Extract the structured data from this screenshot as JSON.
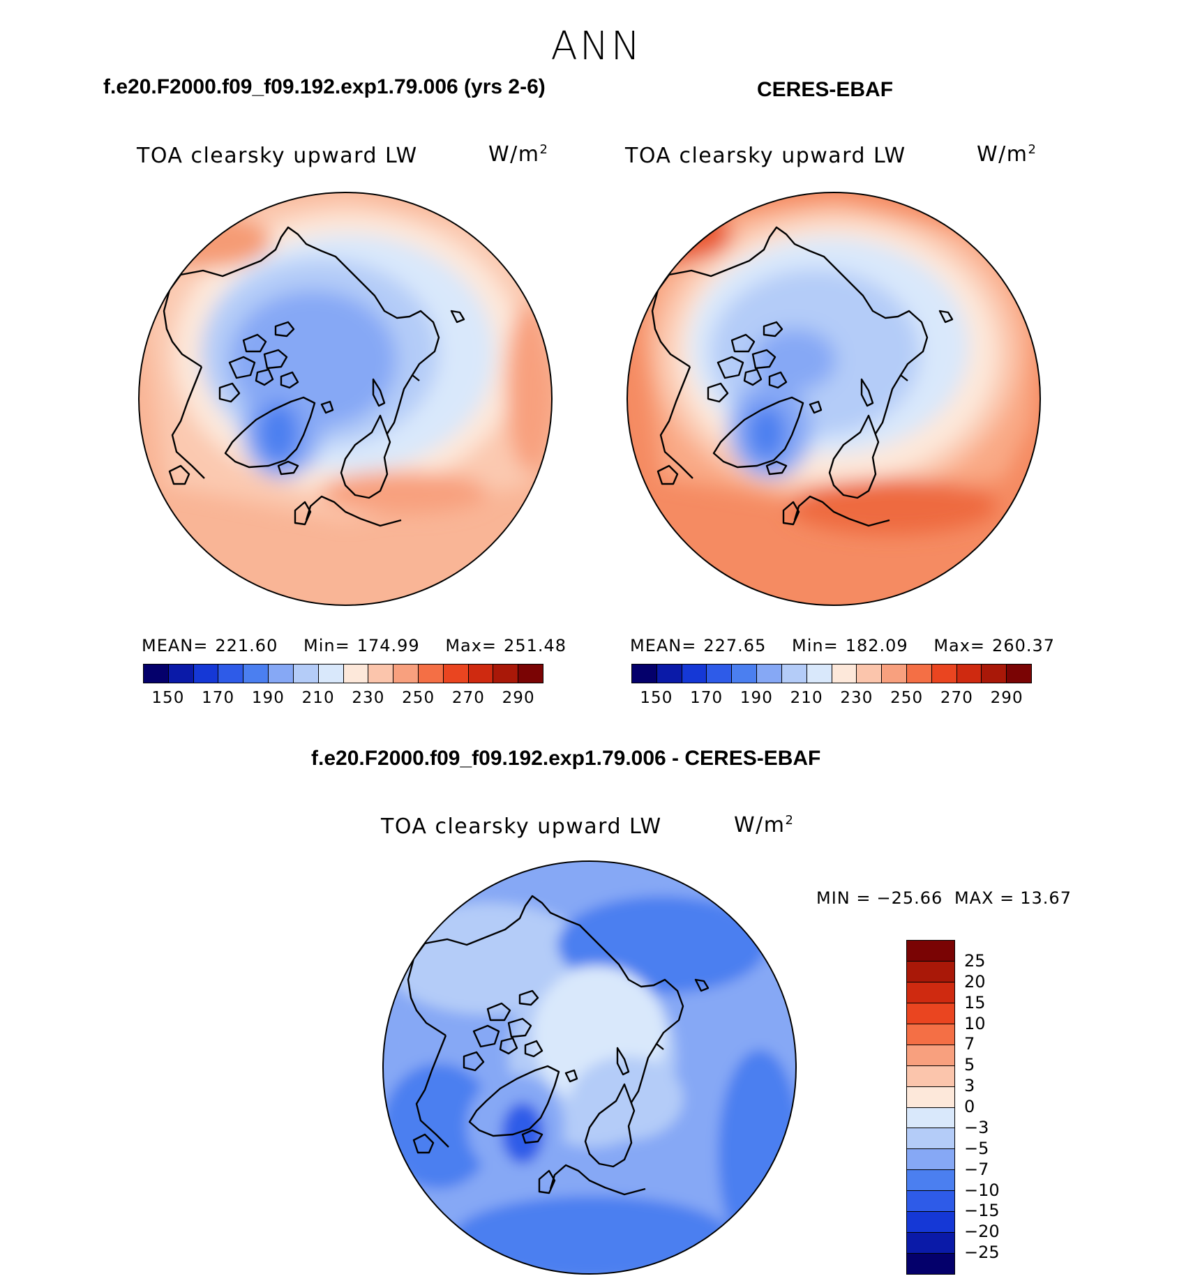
{
  "figure": {
    "season": "ANN",
    "variable": "TOA clearsky upward LW",
    "units_base": "W/m",
    "units_exp": "2"
  },
  "panels": {
    "model": {
      "title": "f.e20.F2000.f09_f09.192.exp1.79.006 (yrs 2-6)",
      "mean_label": "MEAN=",
      "mean": "221.60",
      "min_label": "Min=",
      "min": "174.99",
      "max_label": "Max=",
      "max": "251.48"
    },
    "obs": {
      "title": "CERES-EBAF",
      "mean_label": "MEAN=",
      "mean": "227.65",
      "min_label": "Min=",
      "min": "182.09",
      "max_label": "Max=",
      "max": "260.37"
    },
    "diff": {
      "title": "f.e20.F2000.f09_f09.192.exp1.79.006 - CERES-EBAF",
      "min_label": "MIN =",
      "min": "−25.66",
      "max_label": "MAX =",
      "max": "13.67"
    }
  },
  "chart_data": [
    {
      "type": "heatmap",
      "projection": "north polar stereographic",
      "title": "f.e20.F2000.f09_f09.192.exp1.79.006 (yrs 2-6)",
      "variable": "TOA clearsky upward LW",
      "units": "W/m2",
      "mean": 221.6,
      "min": 174.99,
      "max": 251.48,
      "colorbar_ticks": [
        150,
        170,
        190,
        210,
        230,
        250,
        270,
        290
      ],
      "colorbar_colors": [
        "#04006b",
        "#0a1aa8",
        "#1538d6",
        "#2e5be8",
        "#4b7ff0",
        "#86a8f5",
        "#b4ccf8",
        "#d9e8fb",
        "#fde8da",
        "#fbc5ac",
        "#f8a07e",
        "#f46f45",
        "#ea4520",
        "#cf2a10",
        "#a91808",
        "#7a0404"
      ]
    },
    {
      "type": "heatmap",
      "projection": "north polar stereographic",
      "title": "CERES-EBAF",
      "variable": "TOA clearsky upward LW",
      "units": "W/m2",
      "mean": 227.65,
      "min": 182.09,
      "max": 260.37,
      "colorbar_ticks": [
        150,
        170,
        190,
        210,
        230,
        250,
        270,
        290
      ],
      "colorbar_colors": [
        "#04006b",
        "#0a1aa8",
        "#1538d6",
        "#2e5be8",
        "#4b7ff0",
        "#86a8f5",
        "#b4ccf8",
        "#d9e8fb",
        "#fde8da",
        "#fbc5ac",
        "#f8a07e",
        "#f46f45",
        "#ea4520",
        "#cf2a10",
        "#a91808",
        "#7a0404"
      ]
    },
    {
      "type": "heatmap",
      "projection": "north polar stereographic",
      "title": "f.e20.F2000.f09_f09.192.exp1.79.006 - CERES-EBAF",
      "variable": "TOA clearsky upward LW",
      "units": "W/m2",
      "min": -25.66,
      "max": 13.67,
      "colorbar_ticks": [
        "25",
        "20",
        "15",
        "10",
        "7",
        "5",
        "3",
        "0",
        "−3",
        "−5",
        "−7",
        "−10",
        "−15",
        "−20",
        "−25"
      ],
      "colorbar_colors": [
        "#7a0404",
        "#a91808",
        "#cf2a10",
        "#ea4520",
        "#f46f45",
        "#f8a07e",
        "#fbc5ac",
        "#fde8da",
        "#d9e8fb",
        "#b4ccf8",
        "#86a8f5",
        "#4b7ff0",
        "#2e5be8",
        "#1538d6",
        "#0a1aa8",
        "#04006b"
      ]
    }
  ]
}
